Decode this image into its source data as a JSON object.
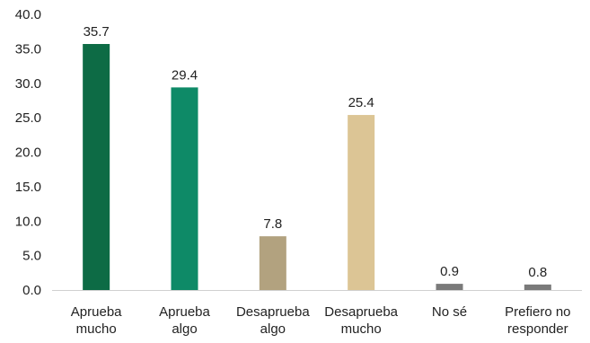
{
  "chart_data": {
    "type": "bar",
    "categories": [
      [
        "Aprueba",
        "mucho"
      ],
      [
        "Aprueba",
        "algo"
      ],
      [
        "Desaprueba",
        "algo"
      ],
      [
        "Desaprueba",
        "mucho"
      ],
      [
        "No sé"
      ],
      [
        "Prefiero no",
        "responder"
      ]
    ],
    "values": [
      35.7,
      29.4,
      7.8,
      25.4,
      0.9,
      0.8
    ],
    "data_labels": [
      "35.7",
      "29.4",
      "7.8",
      "25.4",
      "0.9",
      "0.8"
    ],
    "colors": [
      "#0d6b45",
      "#0e8a67",
      "#b2a27f",
      "#dcc595",
      "#7a7a7a",
      "#7a7a7a"
    ],
    "yticks": [
      "0.0",
      "5.0",
      "10.0",
      "15.0",
      "20.0",
      "25.0",
      "30.0",
      "35.0",
      "40.0"
    ],
    "ylim": [
      0,
      40
    ],
    "grid": false,
    "title": "",
    "xlabel": "",
    "ylabel": ""
  }
}
